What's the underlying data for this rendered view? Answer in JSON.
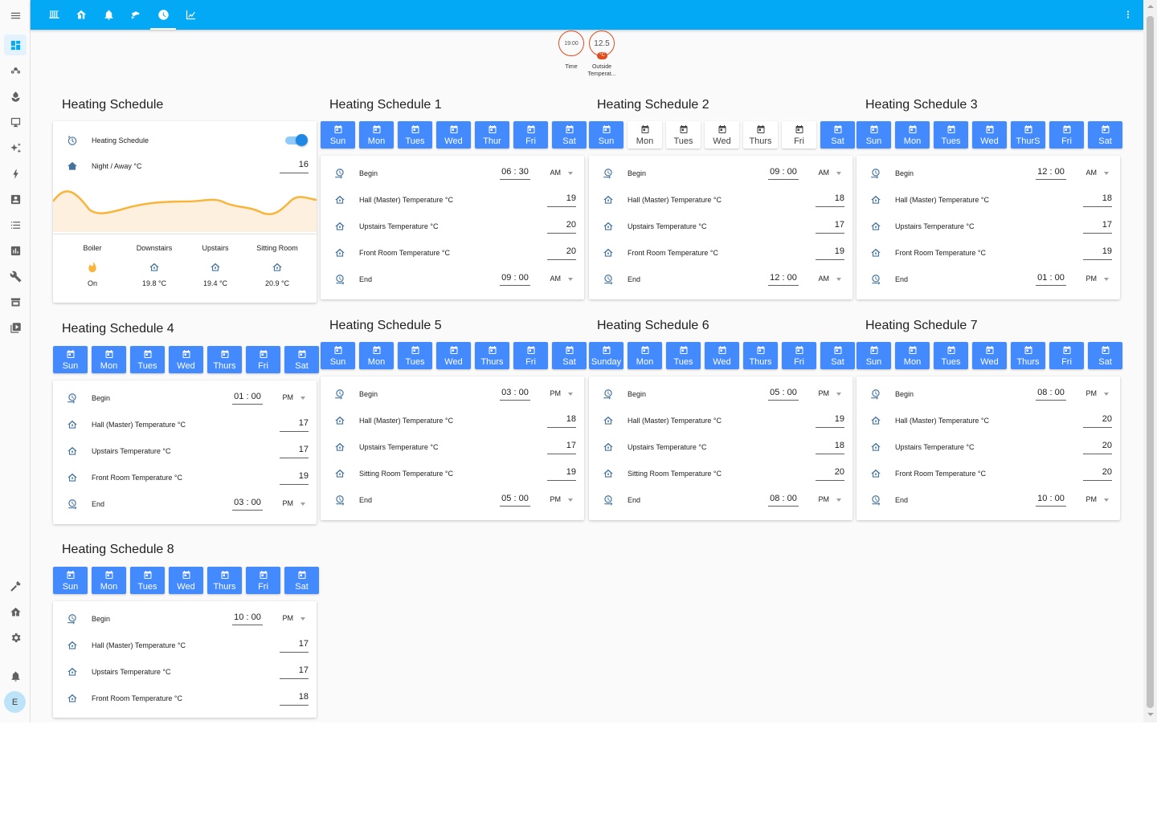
{
  "topbar": {
    "tabs": [
      {
        "icon": "radiator-icon"
      },
      {
        "icon": "home-thermometer-icon"
      },
      {
        "icon": "bell-icon"
      },
      {
        "icon": "cctv-icon"
      },
      {
        "icon": "clock-icon",
        "active": true
      },
      {
        "icon": "chart-icon"
      }
    ],
    "menu_icon": "dots-vertical-icon"
  },
  "sidebar": {
    "menu_icon": "menu-icon",
    "items": [
      {
        "icon": "dashboard-icon",
        "active": true
      },
      {
        "icon": "robot-mower-icon"
      },
      {
        "icon": "plant-icon"
      },
      {
        "icon": "monitor-icon"
      },
      {
        "icon": "sparkles-icon"
      },
      {
        "icon": "lightning-icon"
      },
      {
        "icon": "account-box-icon"
      },
      {
        "icon": "list-icon"
      },
      {
        "icon": "chart-box-icon"
      },
      {
        "icon": "wrench-icon"
      },
      {
        "icon": "hacs-icon"
      },
      {
        "icon": "media-icon"
      }
    ],
    "bottom_items": [
      {
        "icon": "hammer-icon"
      },
      {
        "icon": "home-gear-icon"
      },
      {
        "icon": "settings-icon"
      },
      {
        "icon": "notification-bell-icon"
      }
    ],
    "avatar": "E"
  },
  "badges": [
    {
      "value": "19:00",
      "label": "Time"
    },
    {
      "value": "12.5",
      "unit": "°C",
      "label": "Outside Temperat..."
    }
  ],
  "main_card": {
    "title": "Heating Schedule",
    "toggle_label": "Heating Schedule",
    "toggle_on": true,
    "night_label": "Night / Away °C",
    "night_value": "16",
    "zones": [
      {
        "name": "Boiler",
        "icon": "fire-icon",
        "value": "On"
      },
      {
        "name": "Downstairs",
        "icon": "home-thermometer-icon",
        "value": "19.8 °C"
      },
      {
        "name": "Upstairs",
        "icon": "home-thermometer-icon",
        "value": "19.4 °C"
      },
      {
        "name": "Sitting Room",
        "icon": "home-thermometer-icon",
        "value": "20.9 °C"
      }
    ],
    "accent_color": "#f9b43a"
  },
  "labels": {
    "begin": "Begin",
    "end": "End"
  },
  "schedules": [
    {
      "title": "Heating Schedule 1",
      "days": [
        [
          "Sun",
          true
        ],
        [
          "Mon",
          true
        ],
        [
          "Tues",
          true
        ],
        [
          "Wed",
          true
        ],
        [
          "Thur",
          true
        ],
        [
          "Fri",
          true
        ],
        [
          "Sat",
          true
        ]
      ],
      "begin": "06 : 30",
      "begin_ampm": "AM",
      "rows": [
        [
          "Hall (Master) Temperature °C",
          "19"
        ],
        [
          "Upstairs Temperature °C",
          "20"
        ],
        [
          "Front Room Temperature °C",
          "20"
        ]
      ],
      "end": "09 : 00",
      "end_ampm": "AM"
    },
    {
      "title": "Heating Schedule 2",
      "days": [
        [
          "Sun",
          true
        ],
        [
          "Mon",
          false
        ],
        [
          "Tues",
          false
        ],
        [
          "Wed",
          false
        ],
        [
          "Thurs",
          false
        ],
        [
          "Fri",
          false
        ],
        [
          "Sat",
          true
        ]
      ],
      "begin": "09 : 00",
      "begin_ampm": "AM",
      "rows": [
        [
          "Hall (Master) Temperature °C",
          "18"
        ],
        [
          "Upstairs Temperature °C",
          "17"
        ],
        [
          "Front Room Temperature °C",
          "19"
        ]
      ],
      "end": "12 : 00",
      "end_ampm": "AM"
    },
    {
      "title": "Heating Schedule 3",
      "days": [
        [
          "Sun",
          true
        ],
        [
          "Mon",
          true
        ],
        [
          "Tues",
          true
        ],
        [
          "Wed",
          true
        ],
        [
          "ThurS",
          true
        ],
        [
          "Fri",
          true
        ],
        [
          "Sat",
          true
        ]
      ],
      "begin": "12 : 00",
      "begin_ampm": "AM",
      "rows": [
        [
          "Hall (Master) Temperature °C",
          "18"
        ],
        [
          "Upstairs Temperature °C",
          "17"
        ],
        [
          "Front Room Temperature °C",
          "19"
        ]
      ],
      "end": "01 : 00",
      "end_ampm": "PM"
    },
    {
      "title": "Heating Schedule 4",
      "days": [
        [
          "Sun",
          true
        ],
        [
          "Mon",
          true
        ],
        [
          "Tues",
          true
        ],
        [
          "Wed",
          true
        ],
        [
          "Thurs",
          true
        ],
        [
          "Fri",
          true
        ],
        [
          "Sat",
          true
        ]
      ],
      "begin": "01 : 00",
      "begin_ampm": "PM",
      "rows": [
        [
          "Hall (Master) Temperature °C",
          "17"
        ],
        [
          "Upstairs Temperature °C",
          "17"
        ],
        [
          "Front Room Temperature °C",
          "19"
        ]
      ],
      "end": "03 : 00",
      "end_ampm": "PM"
    },
    {
      "title": "Heating Schedule 5",
      "days": [
        [
          "Sun",
          true
        ],
        [
          "Mon",
          true
        ],
        [
          "Tues",
          true
        ],
        [
          "Wed",
          true
        ],
        [
          "Thurs",
          true
        ],
        [
          "Fri",
          true
        ],
        [
          "Sat",
          true
        ]
      ],
      "begin": "03 : 00",
      "begin_ampm": "PM",
      "rows": [
        [
          "Hall (Master) Temperature °C",
          "18"
        ],
        [
          "Upstairs Temperature °C",
          "17"
        ],
        [
          "Sitting Room Temperature °C",
          "19"
        ]
      ],
      "end": "05 : 00",
      "end_ampm": "PM"
    },
    {
      "title": "Heating Schedule 6",
      "days": [
        [
          "Sunday",
          true
        ],
        [
          "Mon",
          true
        ],
        [
          "Tues",
          true
        ],
        [
          "Wed",
          true
        ],
        [
          "Thurs",
          true
        ],
        [
          "Fri",
          true
        ],
        [
          "Sat",
          true
        ]
      ],
      "begin": "05 : 00",
      "begin_ampm": "PM",
      "rows": [
        [
          "Hall (Master) Temperature °C",
          "19"
        ],
        [
          "Upstairs Temperature °C",
          "18"
        ],
        [
          "Sitting Room Temperature °C",
          "20"
        ]
      ],
      "end": "08 : 00",
      "end_ampm": "PM"
    },
    {
      "title": "Heating Schedule 7",
      "days": [
        [
          "Sun",
          true
        ],
        [
          "Mon",
          true
        ],
        [
          "Tues",
          true
        ],
        [
          "Wed",
          true
        ],
        [
          "Thurs",
          true
        ],
        [
          "Fri",
          true
        ],
        [
          "Sat",
          true
        ]
      ],
      "begin": "08 : 00",
      "begin_ampm": "PM",
      "rows": [
        [
          "Hall (Master) Temperature °C",
          "20"
        ],
        [
          "Upstairs Temperature °C",
          "20"
        ],
        [
          "Front Room Temperature °C",
          "20"
        ]
      ],
      "end": "10 : 00",
      "end_ampm": "PM"
    },
    {
      "title": "Heating Schedule 8",
      "days": [
        [
          "Sun",
          true
        ],
        [
          "Mon",
          true
        ],
        [
          "Tues",
          true
        ],
        [
          "Wed",
          true
        ],
        [
          "Thurs",
          true
        ],
        [
          "Fri",
          true
        ],
        [
          "Sat",
          true
        ]
      ],
      "begin": "10 : 00",
      "begin_ampm": "PM",
      "rows": [
        [
          "Hall (Master) Temperature °C",
          "17"
        ],
        [
          "Upstairs Temperature °C",
          "17"
        ],
        [
          "Front Room Temperature °C",
          "18"
        ]
      ],
      "end": null,
      "end_ampm": null
    }
  ]
}
